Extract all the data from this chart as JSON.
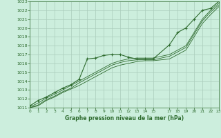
{
  "title": "Graphe pression niveau de la mer (hPa)",
  "bg_color": "#cceedd",
  "grid_color": "#aaccbb",
  "line_color": "#2d6a2d",
  "marker_color": "#2d6a2d",
  "ylim": [
    1011,
    1023
  ],
  "xlim": [
    0,
    23
  ],
  "yticks": [
    1011,
    1012,
    1013,
    1014,
    1015,
    1016,
    1017,
    1018,
    1019,
    1020,
    1021,
    1022,
    1023
  ],
  "xticks": [
    0,
    1,
    2,
    3,
    4,
    5,
    6,
    7,
    8,
    9,
    10,
    11,
    12,
    13,
    14,
    15,
    17,
    18,
    19,
    20,
    21,
    22,
    23
  ],
  "series": [
    {
      "x": [
        0,
        1,
        2,
        3,
        4,
        5,
        6,
        7,
        8,
        9,
        10,
        11,
        12,
        13,
        14,
        15,
        17,
        18,
        19,
        20,
        21,
        22,
        23
      ],
      "y": [
        1011.2,
        1011.8,
        1012.2,
        1012.7,
        1013.2,
        1013.6,
        1014.2,
        1016.5,
        1016.6,
        1016.9,
        1017.0,
        1017.0,
        1016.7,
        1016.5,
        1016.5,
        1016.5,
        1018.1,
        1019.5,
        1020.0,
        1021.0,
        1022.0,
        1022.2,
        1023.0
      ],
      "marker": true
    },
    {
      "x": [
        0,
        1,
        2,
        3,
        4,
        5,
        6,
        7,
        8,
        9,
        10,
        11,
        12,
        13,
        14,
        15,
        17,
        18,
        19,
        20,
        21,
        22,
        23
      ],
      "y": [
        1011.1,
        1011.5,
        1012.1,
        1012.5,
        1013.0,
        1013.5,
        1014.0,
        1014.5,
        1015.0,
        1015.5,
        1016.0,
        1016.3,
        1016.5,
        1016.6,
        1016.6,
        1016.6,
        1017.0,
        1017.5,
        1018.0,
        1019.5,
        1021.0,
        1022.0,
        1022.8
      ],
      "marker": false
    },
    {
      "x": [
        0,
        1,
        2,
        3,
        4,
        5,
        6,
        7,
        8,
        9,
        10,
        11,
        12,
        13,
        14,
        15,
        17,
        18,
        19,
        20,
        21,
        22,
        23
      ],
      "y": [
        1011.0,
        1011.3,
        1011.9,
        1012.3,
        1012.8,
        1013.2,
        1013.8,
        1014.3,
        1014.8,
        1015.3,
        1015.8,
        1016.1,
        1016.3,
        1016.4,
        1016.4,
        1016.4,
        1016.8,
        1017.3,
        1017.8,
        1019.3,
        1020.8,
        1021.8,
        1022.6
      ],
      "marker": false
    },
    {
      "x": [
        0,
        1,
        2,
        3,
        4,
        5,
        6,
        7,
        8,
        9,
        10,
        11,
        12,
        13,
        14,
        15,
        17,
        18,
        19,
        20,
        21,
        22,
        23
      ],
      "y": [
        1011.0,
        1011.2,
        1011.8,
        1012.2,
        1012.7,
        1013.1,
        1013.5,
        1014.0,
        1014.5,
        1015.0,
        1015.5,
        1015.8,
        1016.0,
        1016.2,
        1016.3,
        1016.3,
        1016.5,
        1017.0,
        1017.5,
        1019.0,
        1020.5,
        1021.5,
        1022.4
      ],
      "marker": false
    }
  ]
}
